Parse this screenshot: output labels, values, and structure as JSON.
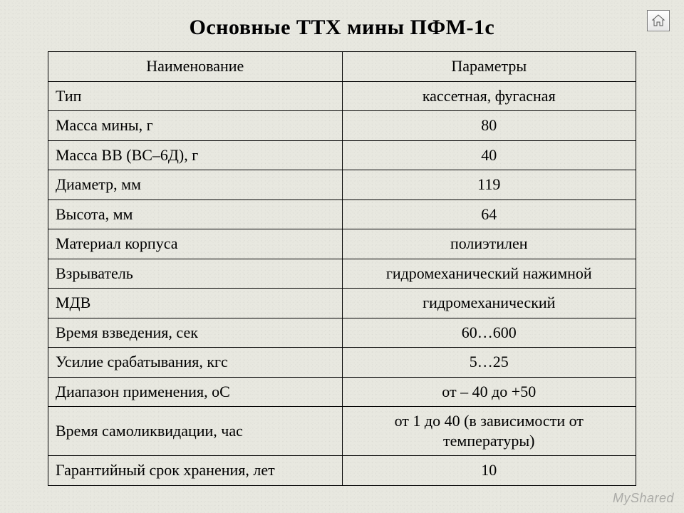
{
  "title": "Основные ТТХ мины ПФМ-1с",
  "table": {
    "columns": [
      "Наименование",
      "Параметры"
    ],
    "rows": [
      {
        "name": "Тип",
        "param": "кассетная, фугасная"
      },
      {
        "name": "Масса мины, г",
        "param": "80"
      },
      {
        "name": "Масса ВВ (ВС–6Д), г",
        "param": "40"
      },
      {
        "name": "Диаметр, мм",
        "param": "119"
      },
      {
        "name": "Высота, мм",
        "param": "64"
      },
      {
        "name": "Материал корпуса",
        "param": "полиэтилен"
      },
      {
        "name": "Взрыватель",
        "param": "гидромеханический нажимной"
      },
      {
        "name": "МДВ",
        "param": "гидромеханический"
      },
      {
        "name": "Время взведения, сек",
        "param": "60…600"
      },
      {
        "name": "Усилие срабатывания, кгс",
        "param": "5…25"
      },
      {
        "name": "Диапазон применения, оС",
        "param": "от – 40 до +50"
      },
      {
        "name": "Время самоликвидации, час",
        "param": "от 1 до 40 (в зависимости от температуры)"
      },
      {
        "name": "Гарантийный срок хранения, лет",
        "param": "10"
      }
    ],
    "col_widths_pct": [
      50,
      50
    ],
    "border_color": "#000000",
    "font_size_pt": 17,
    "header_align": "center",
    "name_align": "left",
    "param_align": "center"
  },
  "background_color": "#e8e8e0",
  "watermark": "MyShared",
  "home_button": {
    "icon": "house-icon"
  }
}
